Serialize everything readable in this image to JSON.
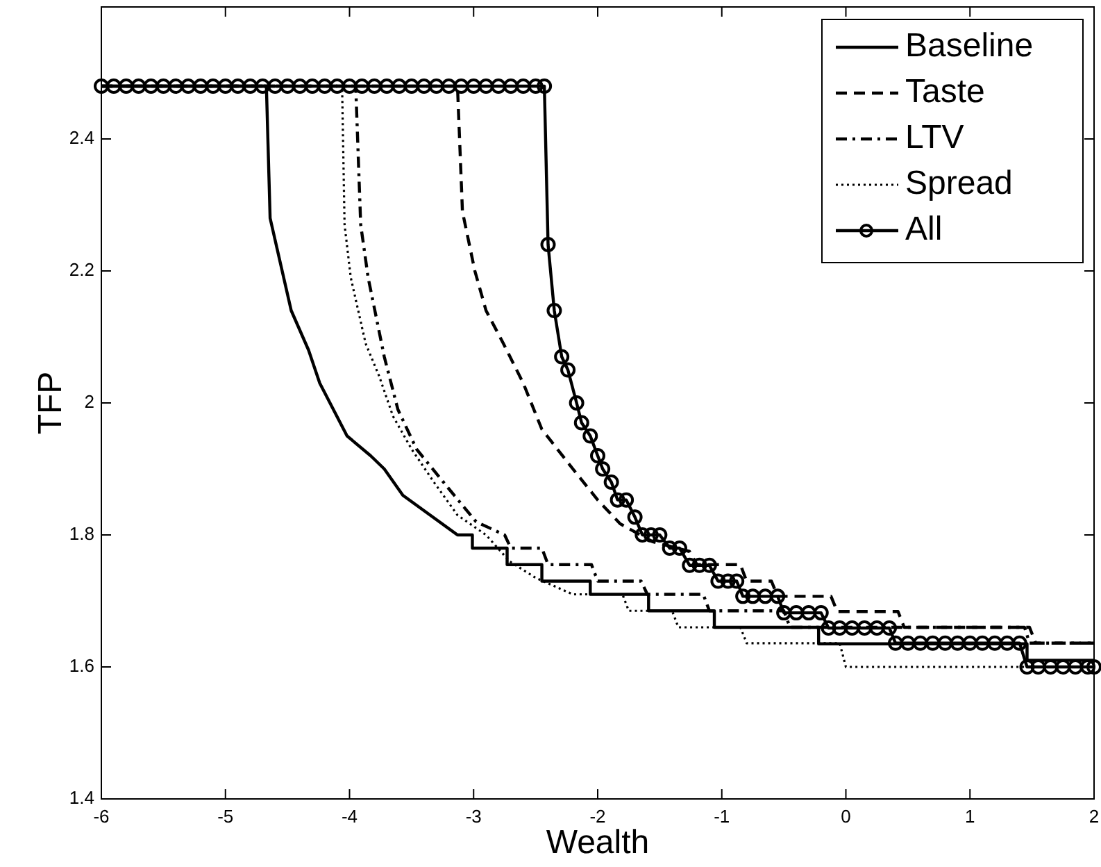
{
  "chart_data": {
    "type": "line",
    "xlabel": "Wealth",
    "ylabel": "TFP",
    "xlim": [
      -6,
      2
    ],
    "ylim": [
      1.4,
      2.6
    ],
    "xticks": [
      -6,
      -5,
      -4,
      -3,
      -2,
      -1,
      0,
      1,
      2
    ],
    "yticks": [
      1.4,
      1.6,
      1.8,
      2,
      2.2,
      2.4
    ],
    "grid": false,
    "legend": "top right",
    "series": [
      {
        "name": "Baseline",
        "color": "#000000",
        "line_style": "solid",
        "marker": "none",
        "x": [
          -6,
          -4.67,
          -4.64,
          -4.47,
          -4.33,
          -4.24,
          -4.02,
          -3.83,
          -3.72,
          -3.57,
          -3.35,
          -3.13,
          -3.01,
          -3.01,
          -2.73,
          -2.73,
          -2.45,
          -2.45,
          -2.06,
          -2.06,
          -1.59,
          -1.59,
          -1.06,
          -1.06,
          -0.22,
          -0.22,
          1.46,
          1.46,
          2
        ],
        "values": [
          2.48,
          2.48,
          2.28,
          2.14,
          2.08,
          2.03,
          1.95,
          1.92,
          1.9,
          1.86,
          1.83,
          1.8,
          1.8,
          1.78,
          1.78,
          1.755,
          1.755,
          1.73,
          1.73,
          1.71,
          1.71,
          1.685,
          1.685,
          1.66,
          1.66,
          1.635,
          1.635,
          1.61,
          1.61
        ]
      },
      {
        "name": "Taste",
        "color": "#000000",
        "line_style": "dashed",
        "marker": "none",
        "x": [
          -6,
          -3.13,
          -3.09,
          -2.99,
          -2.9,
          -2.76,
          -2.6,
          -2.45,
          -2.2,
          -2.0,
          -1.82,
          -1.56,
          -1.26,
          -1.2,
          -0.85,
          -0.8,
          -0.6,
          -0.55,
          -0.12,
          -0.07,
          0.42,
          0.47,
          1.48,
          1.53,
          2
        ],
        "values": [
          2.48,
          2.48,
          2.29,
          2.2,
          2.14,
          2.09,
          2.03,
          1.96,
          1.9,
          1.853,
          1.817,
          1.79,
          1.775,
          1.755,
          1.755,
          1.73,
          1.73,
          1.707,
          1.707,
          1.684,
          1.684,
          1.66,
          1.66,
          1.636,
          1.636
        ]
      },
      {
        "name": "LTV",
        "color": "#000000",
        "line_style": "dashdot",
        "marker": "none",
        "x": [
          -6,
          -3.95,
          -3.91,
          -3.85,
          -3.72,
          -3.61,
          -3.46,
          -3.2,
          -2.98,
          -2.75,
          -2.7,
          -2.45,
          -2.4,
          -2.05,
          -2.0,
          -1.65,
          -1.6,
          -1.15,
          -1.1,
          -0.5,
          -0.45,
          1.44,
          1.48,
          2
        ],
        "values": [
          2.48,
          2.48,
          2.27,
          2.19,
          2.07,
          1.99,
          1.93,
          1.87,
          1.82,
          1.8,
          1.78,
          1.78,
          1.755,
          1.755,
          1.73,
          1.73,
          1.71,
          1.71,
          1.685,
          1.685,
          1.66,
          1.66,
          1.636,
          1.636
        ]
      },
      {
        "name": "Spread",
        "color": "#000000",
        "line_style": "dotted",
        "marker": "none",
        "x": [
          -6,
          -4.06,
          -4.04,
          -3.99,
          -3.87,
          -3.76,
          -3.65,
          -3.5,
          -3.32,
          -3.13,
          -2.9,
          -2.71,
          -2.5,
          -2.2,
          -1.8,
          -1.75,
          -1.4,
          -1.35,
          -0.85,
          -0.8,
          -0.05,
          0.0,
          2
        ],
        "values": [
          2.48,
          2.48,
          2.27,
          2.19,
          2.09,
          2.04,
          1.98,
          1.93,
          1.88,
          1.83,
          1.8,
          1.76,
          1.735,
          1.71,
          1.71,
          1.685,
          1.685,
          1.66,
          1.66,
          1.636,
          1.636,
          1.6,
          1.6
        ]
      },
      {
        "name": "All",
        "color": "#000000",
        "line_style": "solid",
        "marker": "circle",
        "x": [
          -6,
          -5.9,
          -5.8,
          -5.7,
          -5.6,
          -5.5,
          -5.4,
          -5.3,
          -5.2,
          -5.1,
          -5,
          -4.9,
          -4.8,
          -4.7,
          -4.6,
          -4.5,
          -4.4,
          -4.3,
          -4.2,
          -4.1,
          -4,
          -3.9,
          -3.8,
          -3.7,
          -3.6,
          -3.5,
          -3.4,
          -3.3,
          -3.2,
          -3.1,
          -3,
          -2.9,
          -2.8,
          -2.7,
          -2.6,
          -2.5,
          -2.43,
          -2.4,
          -2.35,
          -2.29,
          -2.24,
          -2.17,
          -2.13,
          -2.06,
          -2.0,
          -1.96,
          -1.89,
          -1.84,
          -1.77,
          -1.7,
          -1.64,
          -1.57,
          -1.5,
          -1.42,
          -1.34,
          -1.26,
          -1.18,
          -1.1,
          -1.03,
          -0.95,
          -0.88,
          -0.83,
          -0.75,
          -0.65,
          -0.55,
          -0.5,
          -0.4,
          -0.3,
          -0.2,
          -0.14,
          -0.05,
          0.05,
          0.15,
          0.25,
          0.35,
          0.4,
          0.5,
          0.6,
          0.7,
          0.8,
          0.9,
          1.0,
          1.1,
          1.2,
          1.3,
          1.4,
          1.46,
          1.55,
          1.65,
          1.75,
          1.85,
          1.95,
          2.0
        ],
        "values": [
          2.48,
          2.48,
          2.48,
          2.48,
          2.48,
          2.48,
          2.48,
          2.48,
          2.48,
          2.48,
          2.48,
          2.48,
          2.48,
          2.48,
          2.48,
          2.48,
          2.48,
          2.48,
          2.48,
          2.48,
          2.48,
          2.48,
          2.48,
          2.48,
          2.48,
          2.48,
          2.48,
          2.48,
          2.48,
          2.48,
          2.48,
          2.48,
          2.48,
          2.48,
          2.48,
          2.48,
          2.48,
          2.24,
          2.14,
          2.07,
          2.05,
          2.0,
          1.97,
          1.95,
          1.92,
          1.9,
          1.88,
          1.853,
          1.853,
          1.827,
          1.8,
          1.8,
          1.8,
          1.78,
          1.78,
          1.754,
          1.754,
          1.754,
          1.73,
          1.73,
          1.73,
          1.707,
          1.707,
          1.707,
          1.707,
          1.682,
          1.682,
          1.682,
          1.682,
          1.659,
          1.659,
          1.659,
          1.659,
          1.659,
          1.659,
          1.636,
          1.636,
          1.636,
          1.636,
          1.636,
          1.636,
          1.636,
          1.636,
          1.636,
          1.636,
          1.636,
          1.6,
          1.6,
          1.6,
          1.6,
          1.6,
          1.6,
          1.6
        ]
      }
    ]
  }
}
